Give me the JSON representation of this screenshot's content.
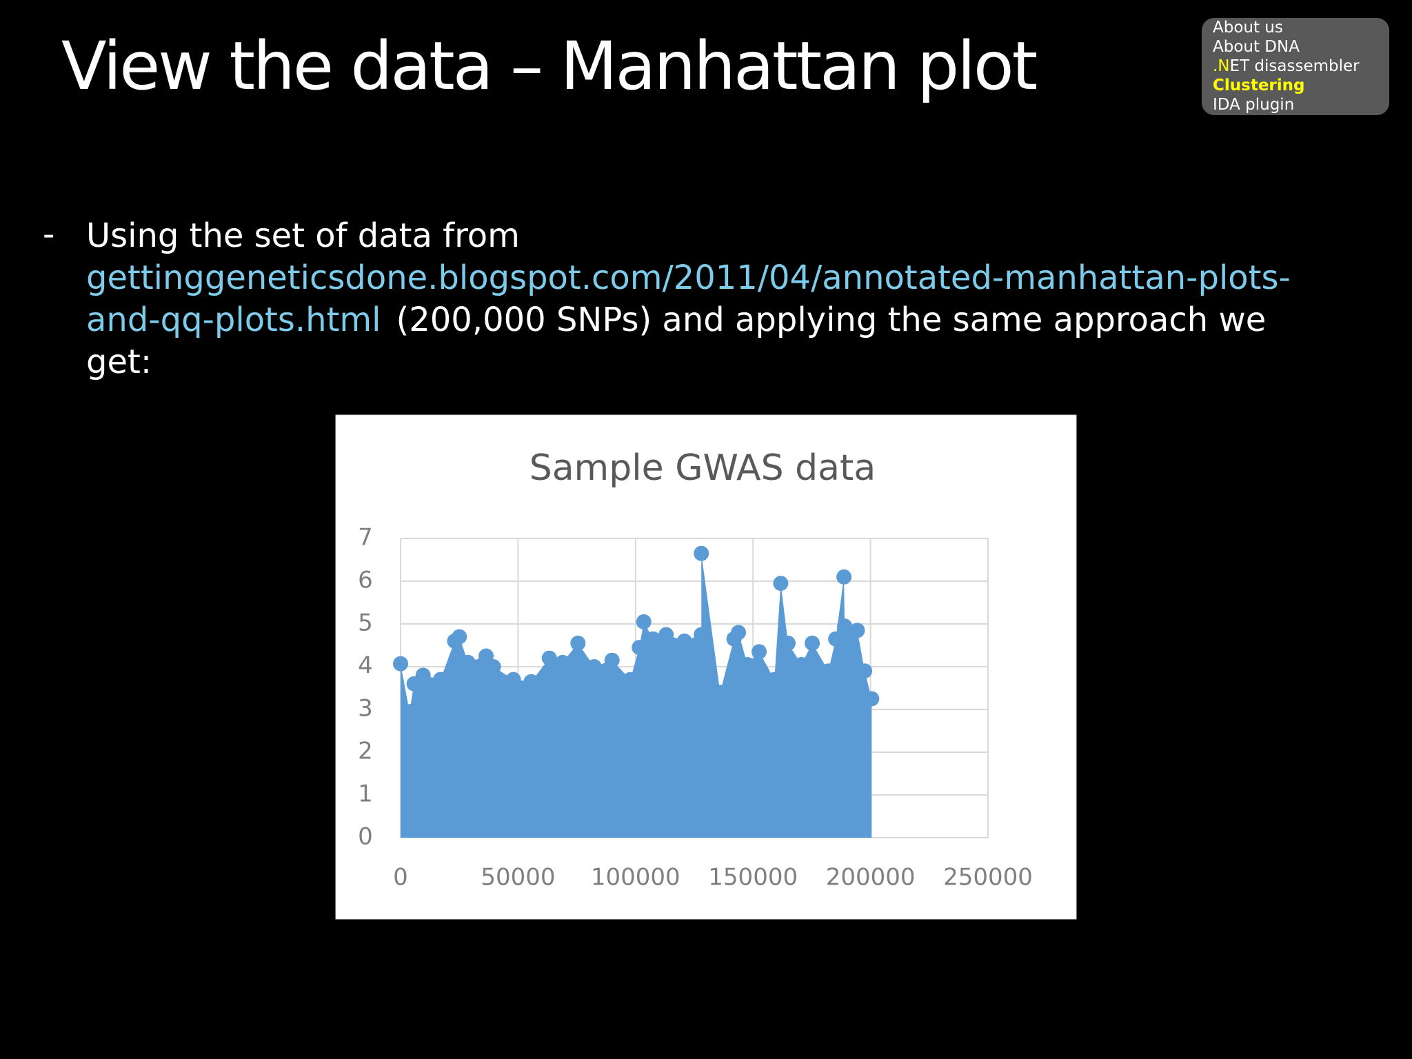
{
  "title": "View the data – Manhattan plot",
  "nav": {
    "items": [
      "About us",
      "About DNA",
      ".NET disassembler",
      "Clustering",
      "IDA plugin"
    ]
  },
  "body": {
    "intro": "Using the set of data from",
    "link": "gettinggeneticsdone.blogspot.com/2011/04/annotated-manhattan-plots-and-qq-plots.html",
    "rest": "(200,000 SNPs) and applying the same approach we get:"
  },
  "chart_data": {
    "type": "scatter",
    "title": "Sample GWAS data",
    "color": "#5b9bd5",
    "grid": true,
    "xlim": [
      0,
      250000
    ],
    "xticks": [
      0,
      50000,
      100000,
      150000,
      200000,
      250000
    ],
    "ylim": [
      0,
      7
    ],
    "yticks": [
      0,
      1,
      2,
      3,
      4,
      5,
      6,
      7
    ],
    "x": [
      0,
      3800,
      5750,
      9600,
      17000,
      23000,
      25000,
      28700,
      36400,
      39500,
      48000,
      55600,
      63300,
      69000,
      75500,
      82400,
      90000,
      97800,
      101600,
      103500,
      107400,
      113000,
      120800,
      128000,
      128000,
      136000,
      141900,
      143800,
      147600,
      152600,
      159100,
      161800,
      164900,
      170600,
      175200,
      182100,
      185200,
      188700,
      189000,
      194400,
      197500,
      200500
    ],
    "y": [
      4.07,
      2.95,
      3.6,
      3.8,
      3.7,
      4.6,
      4.7,
      4.1,
      4.25,
      4.0,
      3.7,
      3.65,
      4.2,
      4.1,
      4.55,
      4.0,
      4.15,
      3.7,
      4.45,
      5.05,
      4.65,
      4.75,
      4.6,
      4.75,
      6.65,
      3.4,
      4.65,
      4.8,
      4.05,
      4.35,
      3.7,
      5.95,
      4.55,
      4.05,
      4.55,
      3.9,
      4.65,
      6.1,
      4.95,
      4.85,
      3.9,
      3.25
    ]
  }
}
